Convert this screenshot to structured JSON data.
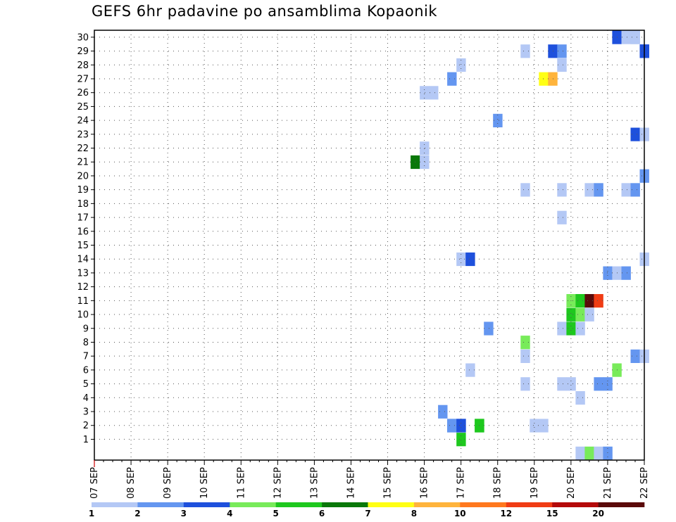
{
  "chart_data": {
    "type": "heatmap",
    "title": "GEFS 6hr padavine po ansamblima Kopaonik",
    "x_tick_labels": [
      "07 SEP",
      "08 SEP",
      "09 SEP",
      "10 SEP",
      "11 SEP",
      "12 SEP",
      "13 SEP",
      "14 SEP",
      "15 SEP",
      "16 SEP",
      "17 SEP",
      "18 SEP",
      "19 SEP",
      "20 SEP",
      "21 SEP",
      "22 SEP"
    ],
    "x_range_days": [
      0,
      15
    ],
    "y_tick_labels": [
      "1",
      "2",
      "3",
      "4",
      "5",
      "6",
      "7",
      "8",
      "9",
      "10",
      "11",
      "12",
      "13",
      "14",
      "15",
      "16",
      "17",
      "18",
      "19",
      "20",
      "21",
      "22",
      "23",
      "24",
      "25",
      "26",
      "27",
      "28",
      "29",
      "30"
    ],
    "y_range": [
      0,
      30
    ],
    "grid": "dotted",
    "legend_position": "bottom",
    "color_scale": {
      "labels": [
        "1",
        "2",
        "3",
        "4",
        "5",
        "6",
        "7",
        "8",
        "10",
        "12",
        "15",
        "20"
      ],
      "colors": [
        "#b4c8f5",
        "#6496f0",
        "#1e50dc",
        "#78eb5a",
        "#1ec81e",
        "#0a780a",
        "#ffff14",
        "#ffb43c",
        "#ff781e",
        "#f03c14",
        "#b40a0a",
        "#5a0a0a"
      ]
    },
    "cells": [
      {
        "t": 57,
        "m": 30,
        "c": "#1e50dc"
      },
      {
        "t": 58,
        "m": 30,
        "c": "#b4c8f5"
      },
      {
        "t": 59,
        "m": 30,
        "c": "#b4c8f5"
      },
      {
        "t": 59,
        "m": 30,
        "c": "#b4c8f5"
      },
      {
        "t": 60,
        "m": 29,
        "c": "#1e50dc"
      },
      {
        "t": 60,
        "m": 29,
        "c": "#1e50dc"
      },
      {
        "t": 39,
        "m": 2,
        "c": "#6496f0"
      },
      {
        "t": 40,
        "m": 2,
        "c": "#1e50dc"
      },
      {
        "t": 42,
        "m": 2,
        "c": "#1ec81e"
      },
      {
        "t": 40,
        "m": 1,
        "c": "#1ec81e"
      },
      {
        "t": 47,
        "m": 29,
        "c": "#b4c8f5"
      },
      {
        "t": 50,
        "m": 29,
        "c": "#1e50dc"
      },
      {
        "t": 51,
        "m": 29,
        "c": "#6496f0"
      },
      {
        "t": 40,
        "m": 28,
        "c": "#b4c8f5"
      },
      {
        "t": 51,
        "m": 28,
        "c": "#b4c8f5"
      },
      {
        "t": 39,
        "m": 27,
        "c": "#6496f0"
      },
      {
        "t": 49,
        "m": 27,
        "c": "#ffff14"
      },
      {
        "t": 50,
        "m": 27,
        "c": "#ffb43c"
      },
      {
        "t": 36,
        "m": 26,
        "c": "#b4c8f5"
      },
      {
        "t": 37,
        "m": 26,
        "c": "#b4c8f5"
      },
      {
        "t": 44,
        "m": 24,
        "c": "#6496f0"
      },
      {
        "t": 59,
        "m": 23,
        "c": "#1e50dc"
      },
      {
        "t": 60,
        "m": 23,
        "c": "#b4c8f5"
      },
      {
        "t": 36,
        "m": 22,
        "c": "#b4c8f5"
      },
      {
        "t": 35,
        "m": 21,
        "c": "#0a780a"
      },
      {
        "t": 36,
        "m": 21,
        "c": "#b4c8f5"
      },
      {
        "t": 60,
        "m": 20,
        "c": "#6496f0"
      },
      {
        "t": 47,
        "m": 19,
        "c": "#b4c8f5"
      },
      {
        "t": 51,
        "m": 19,
        "c": "#b4c8f5"
      },
      {
        "t": 54,
        "m": 19,
        "c": "#b4c8f5"
      },
      {
        "t": 55,
        "m": 19,
        "c": "#6496f0"
      },
      {
        "t": 58,
        "m": 19,
        "c": "#b4c8f5"
      },
      {
        "t": 59,
        "m": 19,
        "c": "#6496f0"
      },
      {
        "t": 51,
        "m": 17,
        "c": "#b4c8f5"
      },
      {
        "t": 40,
        "m": 14,
        "c": "#b4c8f5"
      },
      {
        "t": 41,
        "m": 14,
        "c": "#1e50dc"
      },
      {
        "t": 60,
        "m": 14,
        "c": "#b4c8f5"
      },
      {
        "t": 56,
        "m": 13,
        "c": "#6496f0"
      },
      {
        "t": 57,
        "m": 13,
        "c": "#b4c8f5"
      },
      {
        "t": 58,
        "m": 13,
        "c": "#6496f0"
      },
      {
        "t": 52,
        "m": 11,
        "c": "#78eb5a"
      },
      {
        "t": 53,
        "m": 11,
        "c": "#1ec81e"
      },
      {
        "t": 54,
        "m": 11,
        "c": "#5a0a0a"
      },
      {
        "t": 55,
        "m": 11,
        "c": "#f03c14"
      },
      {
        "t": 52,
        "m": 10,
        "c": "#1ec81e"
      },
      {
        "t": 53,
        "m": 10,
        "c": "#78eb5a"
      },
      {
        "t": 54,
        "m": 10,
        "c": "#b4c8f5"
      },
      {
        "t": 43,
        "m": 9,
        "c": "#6496f0"
      },
      {
        "t": 51,
        "m": 9,
        "c": "#b4c8f5"
      },
      {
        "t": 52,
        "m": 9,
        "c": "#1ec81e"
      },
      {
        "t": 53,
        "m": 9,
        "c": "#b4c8f5"
      },
      {
        "t": 47,
        "m": 8,
        "c": "#78eb5a"
      },
      {
        "t": 47,
        "m": 7,
        "c": "#b4c8f5"
      },
      {
        "t": 59,
        "m": 7,
        "c": "#6496f0"
      },
      {
        "t": 60,
        "m": 7,
        "c": "#b4c8f5"
      },
      {
        "t": 41,
        "m": 6,
        "c": "#b4c8f5"
      },
      {
        "t": 57,
        "m": 6,
        "c": "#78eb5a"
      },
      {
        "t": 47,
        "m": 5,
        "c": "#b4c8f5"
      },
      {
        "t": 51,
        "m": 5,
        "c": "#b4c8f5"
      },
      {
        "t": 52,
        "m": 5,
        "c": "#b4c8f5"
      },
      {
        "t": 55,
        "m": 5,
        "c": "#6496f0"
      },
      {
        "t": 56,
        "m": 5,
        "c": "#6496f0"
      },
      {
        "t": 53,
        "m": 4,
        "c": "#b4c8f5"
      },
      {
        "t": 38,
        "m": 3,
        "c": "#6496f0"
      },
      {
        "t": 39,
        "m": 2,
        "c": "#6496f0"
      },
      {
        "t": 40,
        "m": 2,
        "c": "#1e50dc"
      },
      {
        "t": 42,
        "m": 2,
        "c": "#1ec81e"
      },
      {
        "t": 48,
        "m": 2,
        "c": "#b4c8f5"
      },
      {
        "t": 49,
        "m": 2,
        "c": "#b4c8f5"
      },
      {
        "t": 53,
        "m": 0,
        "c": "#b4c8f5"
      },
      {
        "t": 54,
        "m": 0,
        "c": "#78eb5a"
      },
      {
        "t": 55,
        "m": 0,
        "c": "#b4c8f5"
      },
      {
        "t": 56,
        "m": 0,
        "c": "#6496f0"
      }
    ]
  }
}
